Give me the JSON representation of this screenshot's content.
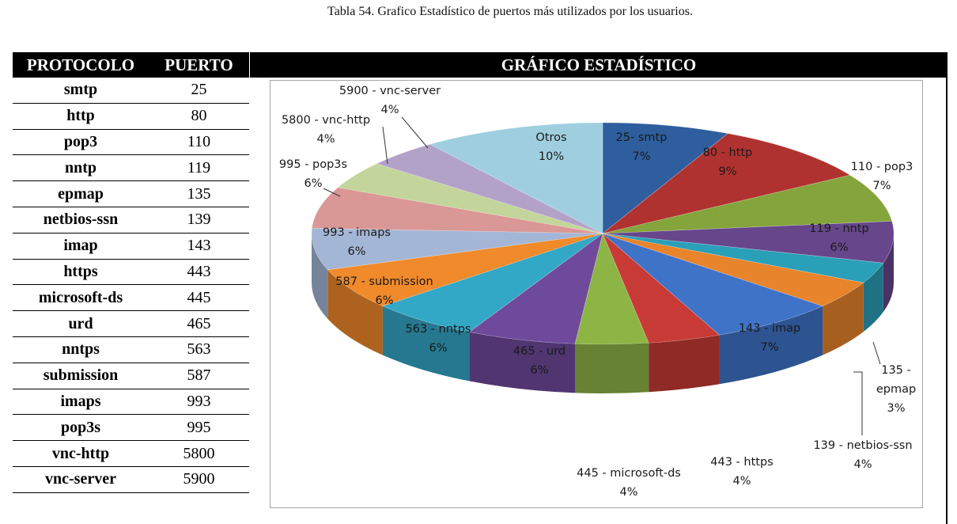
{
  "caption": "Tabla 54. Grafico Estadístico de puertos más utilizados por los usuarios.",
  "table": {
    "headers": [
      "PROTOCOLO",
      "PUERTO"
    ],
    "rows": [
      [
        "smtp",
        "25"
      ],
      [
        "http",
        "80"
      ],
      [
        "pop3",
        "110"
      ],
      [
        "nntp",
        "119"
      ],
      [
        "epmap",
        "135"
      ],
      [
        "netbios-ssn",
        "139"
      ],
      [
        "imap",
        "143"
      ],
      [
        "https",
        "443"
      ],
      [
        "microsoft-ds",
        "445"
      ],
      [
        "urd",
        "465"
      ],
      [
        "nntps",
        "563"
      ],
      [
        "submission",
        "587"
      ],
      [
        "imaps",
        "993"
      ],
      [
        "pop3s",
        "995"
      ],
      [
        "vnc-http",
        "5800"
      ],
      [
        "vnc-server",
        "5900"
      ]
    ]
  },
  "chart_title": "GRÁFICO ESTADÍSTICO",
  "chart_data": {
    "type": "pie",
    "title": "GRÁFICO ESTADÍSTICO",
    "slices": [
      {
        "label": "25- smtp",
        "value": 7,
        "pct": "7%",
        "color": "#2e5e9e"
      },
      {
        "label": "80 - http",
        "value": 9,
        "pct": "9%",
        "color": "#b03230"
      },
      {
        "label": "110 - pop3",
        "value": 7,
        "pct": "7%",
        "color": "#84a43c"
      },
      {
        "label": "119 - nntp",
        "value": 6,
        "pct": "6%",
        "color": "#67468c"
      },
      {
        "label": "135 - epmap",
        "value": 3,
        "pct": "3%",
        "color": "#2a9fb8"
      },
      {
        "label": "139 - netbios-ssn",
        "value": 4,
        "pct": "4%",
        "color": "#e8842c"
      },
      {
        "label": "143 - imap",
        "value": 7,
        "pct": "7%",
        "color": "#3f73c8"
      },
      {
        "label": "443 - https",
        "value": 4,
        "pct": "4%",
        "color": "#c73a35"
      },
      {
        "label": "445 - microsoft-ds",
        "value": 4,
        "pct": "4%",
        "color": "#8db545"
      },
      {
        "label": "465 - urd",
        "value": 6,
        "pct": "6%",
        "color": "#6f4a9c"
      },
      {
        "label": "563 - nntps",
        "value": 6,
        "pct": "6%",
        "color": "#33a7c6"
      },
      {
        "label": "587 - submission",
        "value": 6,
        "pct": "6%",
        "color": "#f08a2a"
      },
      {
        "label": "993 - imaps",
        "value": 6,
        "pct": "6%",
        "color": "#a4b6d6"
      },
      {
        "label": "995 - pop3s",
        "value": 6,
        "pct": "6%",
        "color": "#d99795"
      },
      {
        "label": "5800 - vnc-http",
        "value": 4,
        "pct": "4%",
        "color": "#c3d59b"
      },
      {
        "label": "5900 - vnc-server",
        "value": 4,
        "pct": "4%",
        "color": "#b3a2c8"
      },
      {
        "label": "Otros",
        "value": 10,
        "pct": "10%",
        "color": "#9fcfdf"
      }
    ]
  }
}
